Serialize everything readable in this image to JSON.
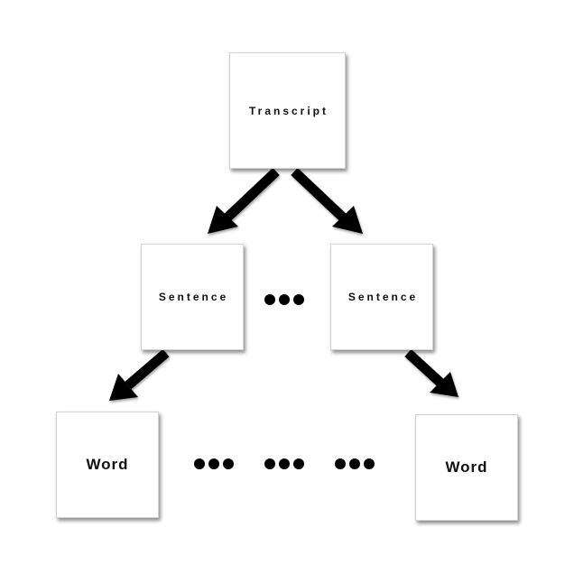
{
  "nodes": {
    "transcript": {
      "label": "Transcript"
    },
    "sentence_left": {
      "label": "Sentence"
    },
    "sentence_right": {
      "label": "Sentence"
    },
    "word_left": {
      "label": "Word"
    },
    "word_right": {
      "label": "Word"
    }
  },
  "colors": {
    "arrow": "#000000",
    "box_border": "#d2d2d2",
    "text": "#111111"
  }
}
